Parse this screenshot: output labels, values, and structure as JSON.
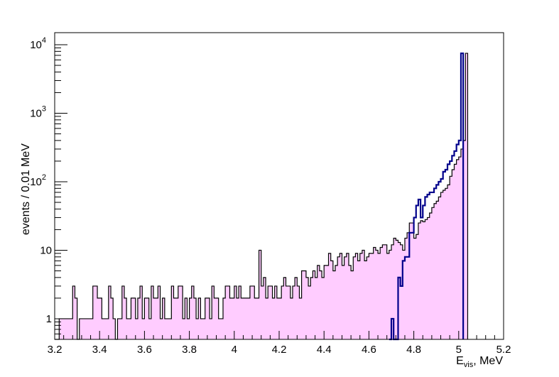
{
  "chart_data": {
    "type": "histogram",
    "title": "",
    "xlabel_main": "E",
    "xlabel_sub": "vis",
    "xlabel_rest": ", MeV",
    "ylabel": "events / 0.01 MeV",
    "xlim": [
      3.2,
      5.2
    ],
    "ylim": [
      0.5,
      15000
    ],
    "ylog": true,
    "grid": false,
    "bin_width": 0.01,
    "x_ticks": [
      "3.2",
      "3.4",
      "3.6",
      "3.8",
      "4",
      "4.2",
      "4.4",
      "4.6",
      "4.8",
      "5",
      "5.2"
    ],
    "y_ticks": [
      {
        "base": "1",
        "exp": "",
        "value": 1
      },
      {
        "base": "10",
        "exp": "",
        "value": 10
      },
      {
        "base": "10",
        "exp": "2",
        "value": 100
      },
      {
        "base": "10",
        "exp": "3",
        "value": 1000
      },
      {
        "base": "10",
        "exp": "4",
        "value": 10000
      }
    ],
    "series": [
      {
        "style": "filled-pink-outline-black",
        "color": "#ffccff",
        "edge": "#000000",
        "x_start": 3.2,
        "values": [
          0,
          0,
          1,
          1,
          1,
          1,
          1,
          1,
          3,
          2,
          0,
          1,
          1,
          1,
          1,
          1,
          1,
          3,
          3,
          2,
          2,
          1,
          1,
          1,
          3,
          2,
          1,
          0,
          1,
          1,
          3,
          2,
          1,
          1,
          2,
          2,
          1,
          2,
          3,
          1,
          2,
          2,
          1,
          3,
          2,
          2,
          3,
          1,
          2,
          1,
          1,
          1,
          3,
          2,
          2,
          3,
          3,
          1,
          2,
          1,
          2,
          3,
          2,
          1,
          2,
          1,
          1,
          2,
          2,
          1,
          3,
          2,
          2,
          1,
          1,
          2,
          3,
          3,
          2,
          2,
          3,
          2,
          3,
          2,
          2,
          2,
          2,
          3,
          3,
          2,
          2,
          10,
          3,
          4,
          2,
          3,
          3,
          2,
          3,
          2,
          2,
          3,
          4,
          3,
          3,
          2,
          3,
          4,
          3,
          2,
          5,
          5,
          4,
          3,
          4,
          5,
          4,
          6,
          5,
          4,
          6,
          6,
          9,
          7,
          5,
          6,
          8,
          9,
          6,
          8,
          9,
          6,
          5,
          8,
          9,
          7,
          9,
          10,
          7,
          8,
          9,
          9,
          11,
          10,
          9,
          11,
          12,
          12,
          9,
          10,
          12,
          15,
          14,
          13,
          12,
          10,
          15,
          18,
          25,
          25,
          15,
          17,
          25,
          27,
          26,
          28,
          30,
          35,
          42,
          48,
          52,
          60,
          70,
          75,
          80,
          90,
          120,
          150,
          180,
          210,
          230,
          300,
          400,
          7500
        ]
      },
      {
        "style": "outline-navy",
        "color": "#00008b",
        "x_start": 4.69,
        "values": [
          0,
          1,
          0,
          0,
          4,
          3,
          7,
          8,
          8,
          18,
          18,
          30,
          45,
          55,
          30,
          45,
          60,
          65,
          70,
          70,
          80,
          90,
          100,
          110,
          140,
          150,
          180,
          200,
          240,
          280,
          350,
          400,
          7500
        ]
      }
    ]
  }
}
